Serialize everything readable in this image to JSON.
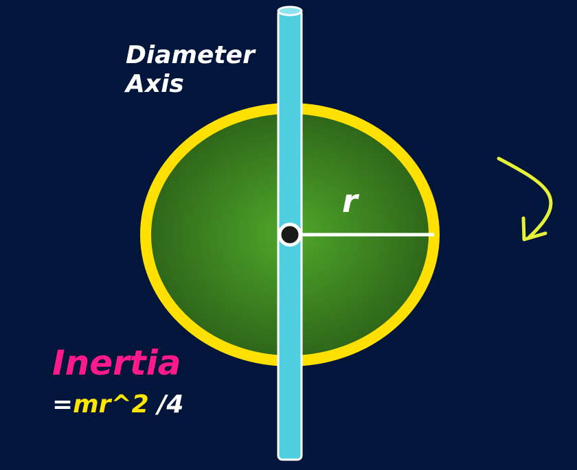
{
  "axis_label": {
    "line1": "Diameter",
    "line2": "Axis"
  },
  "radius_label": "r",
  "inertia": {
    "title": "Inertia",
    "formula_eq": "=",
    "formula_main": "mr^2",
    "formula_tail": "/4"
  },
  "colors": {
    "background": "#02153a",
    "disc_fill_center": "#4fa72a",
    "disc_fill_edge": "#2a5e17",
    "rim": "#ffe000",
    "axis_rod": "#4fcfe0",
    "radius_line": "#ffffff",
    "arrow": "#e6f23a",
    "title": "#ff1a8c"
  },
  "icons": {
    "rotation_arrow": "curved-arrow-icon"
  }
}
